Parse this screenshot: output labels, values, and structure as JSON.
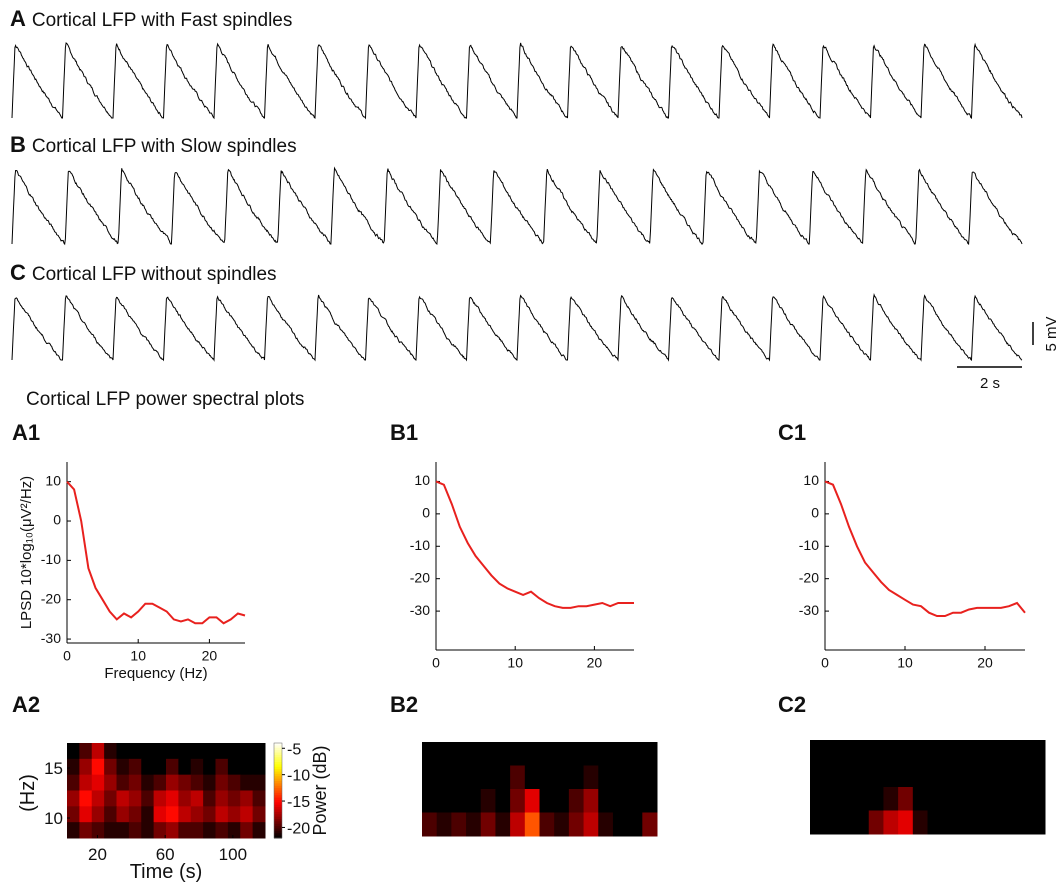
{
  "figure": {
    "traces": [
      {
        "label": "A",
        "title": "Cortical LFP with Fast spindles"
      },
      {
        "label": "B",
        "title": "Cortical LFP with Slow spindles"
      },
      {
        "label": "C",
        "title": "Cortical LFP without spindles"
      }
    ],
    "scale_bars": {
      "voltage": "5 mV",
      "time": "2 s"
    },
    "section_title": "Cortical LFP power spectral plots"
  },
  "chart_data": [
    {
      "type": "line",
      "panel": "A1",
      "ylabel": "LPSD 10*log₁₀(μV²/Hz)",
      "xlabel": "Frequency (Hz)",
      "color": "#e8211e",
      "x": [
        0,
        1,
        2,
        3,
        4,
        5,
        6,
        7,
        8,
        9,
        10,
        11,
        12,
        13,
        14,
        15,
        16,
        17,
        18,
        19,
        20,
        21,
        22,
        23,
        24,
        25
      ],
      "values": [
        10,
        8,
        0,
        -12,
        -17,
        -20,
        -23,
        -25,
        -23.5,
        -24.5,
        -23,
        -21,
        -21,
        -22,
        -23,
        -25,
        -25.5,
        -25,
        -26,
        -26,
        -24.5,
        -24.5,
        -26,
        -25,
        -23.5,
        -24
      ],
      "xlim": [
        0,
        25
      ],
      "xticks": [
        0,
        10,
        20
      ],
      "ylim": [
        -31,
        15
      ],
      "yticks": [
        -30,
        -20,
        -10,
        0,
        10
      ]
    },
    {
      "type": "line",
      "panel": "B1",
      "color": "#e8211e",
      "x": [
        0,
        1,
        2,
        3,
        4,
        5,
        6,
        7,
        8,
        9,
        10,
        11,
        12,
        13,
        14,
        15,
        16,
        17,
        18,
        19,
        20,
        21,
        22,
        23,
        24,
        25
      ],
      "values": [
        10,
        9,
        3,
        -4,
        -9,
        -13,
        -16,
        -19,
        -21.5,
        -23,
        -24,
        -25,
        -24,
        -26,
        -27.5,
        -28.5,
        -29,
        -29,
        -28.5,
        -28.5,
        -28,
        -27.5,
        -28.5,
        -27.5,
        -27.5,
        -27.5
      ],
      "xlim": [
        0,
        25
      ],
      "xticks": [
        0,
        10,
        20
      ],
      "ylim": [
        -42,
        16
      ],
      "yticks": [
        -30,
        -20,
        -10,
        0,
        10
      ]
    },
    {
      "type": "line",
      "panel": "C1",
      "color": "#e8211e",
      "x": [
        0,
        1,
        2,
        3,
        4,
        5,
        6,
        7,
        8,
        9,
        10,
        11,
        12,
        13,
        14,
        15,
        16,
        17,
        18,
        19,
        20,
        21,
        22,
        23,
        24,
        25
      ],
      "values": [
        10,
        9,
        3,
        -4,
        -10,
        -15,
        -18,
        -21,
        -23.5,
        -25,
        -26.5,
        -28,
        -28.5,
        -30.5,
        -31.5,
        -31.5,
        -30.5,
        -30.5,
        -29.5,
        -29,
        -29,
        -29,
        -29,
        -28.5,
        -27.5,
        -30.5
      ],
      "xlim": [
        0,
        25
      ],
      "xticks": [
        0,
        10,
        20
      ],
      "ylim": [
        -42,
        16
      ],
      "yticks": [
        -30,
        -20,
        -10,
        0,
        10
      ]
    },
    {
      "type": "heatmap",
      "panel": "A2",
      "ylabel": "(Hz)",
      "xlabel": "Time (s)",
      "colorbar_label": "Power (dB)",
      "xlim": [
        2,
        119
      ],
      "xticks": [
        20,
        60,
        100
      ],
      "ylim": [
        8,
        17.5
      ],
      "yticks": [
        10,
        15
      ],
      "clim": [
        -22,
        -4
      ],
      "cticks": [
        -5,
        -10,
        -15,
        -20
      ],
      "z": [
        [
          -22,
          -20,
          -17,
          -21,
          -22,
          -22,
          -22,
          -22,
          -22,
          -22,
          -22,
          -22,
          -22,
          -22,
          -22,
          -22
        ],
        [
          -21,
          -18,
          -15,
          -19,
          -21,
          -20,
          -22,
          -22,
          -20,
          -22,
          -21,
          -22,
          -20,
          -22,
          -22,
          -22
        ],
        [
          -20,
          -17,
          -16,
          -18,
          -20,
          -19,
          -21,
          -20,
          -18,
          -19,
          -20,
          -21,
          -19,
          -20,
          -21,
          -21
        ],
        [
          -18,
          -15,
          -17,
          -19,
          -17,
          -18,
          -20,
          -17,
          -16,
          -18,
          -17,
          -20,
          -18,
          -19,
          -18,
          -20
        ],
        [
          -19,
          -16,
          -18,
          -20,
          -18,
          -19,
          -21,
          -16,
          -15,
          -17,
          -18,
          -19,
          -17,
          -18,
          -17,
          -19
        ],
        [
          -21,
          -19,
          -20,
          -21,
          -21,
          -20,
          -21,
          -19,
          -18,
          -20,
          -20,
          -21,
          -20,
          -21,
          -19,
          -21
        ]
      ]
    },
    {
      "type": "heatmap",
      "panel": "B2",
      "clim": [
        -22,
        -4
      ],
      "z": [
        [
          -22,
          -22,
          -22,
          -22,
          -22,
          -22,
          -22,
          -22,
          -22,
          -22,
          -22,
          -22,
          -22,
          -22,
          -22,
          -22
        ],
        [
          -22,
          -22,
          -22,
          -22,
          -22,
          -22,
          -20,
          -22,
          -22,
          -22,
          -22,
          -21,
          -22,
          -22,
          -22,
          -22
        ],
        [
          -22,
          -22,
          -22,
          -22,
          -21,
          -22,
          -19,
          -16,
          -22,
          -22,
          -20,
          -18,
          -22,
          -22,
          -22,
          -22
        ],
        [
          -20,
          -21,
          -20,
          -21,
          -19,
          -21,
          -17,
          -13,
          -20,
          -21,
          -19,
          -17,
          -21,
          -22,
          -22,
          -19
        ]
      ]
    },
    {
      "type": "heatmap",
      "panel": "C2",
      "clim": [
        -22,
        -4
      ],
      "z": [
        [
          -22,
          -22,
          -22,
          -22,
          -22,
          -22,
          -22,
          -22,
          -22,
          -22,
          -22,
          -22,
          -22,
          -22,
          -22,
          -22
        ],
        [
          -22,
          -22,
          -22,
          -22,
          -22,
          -22,
          -22,
          -22,
          -22,
          -22,
          -22,
          -22,
          -22,
          -22,
          -22,
          -22
        ],
        [
          -22,
          -22,
          -22,
          -22,
          -22,
          -21,
          -19,
          -22,
          -22,
          -22,
          -22,
          -22,
          -22,
          -22,
          -22,
          -22
        ],
        [
          -22,
          -22,
          -22,
          -22,
          -19,
          -17,
          -16,
          -21,
          -22,
          -22,
          -22,
          -22,
          -22,
          -22,
          -22,
          -22
        ]
      ]
    }
  ]
}
